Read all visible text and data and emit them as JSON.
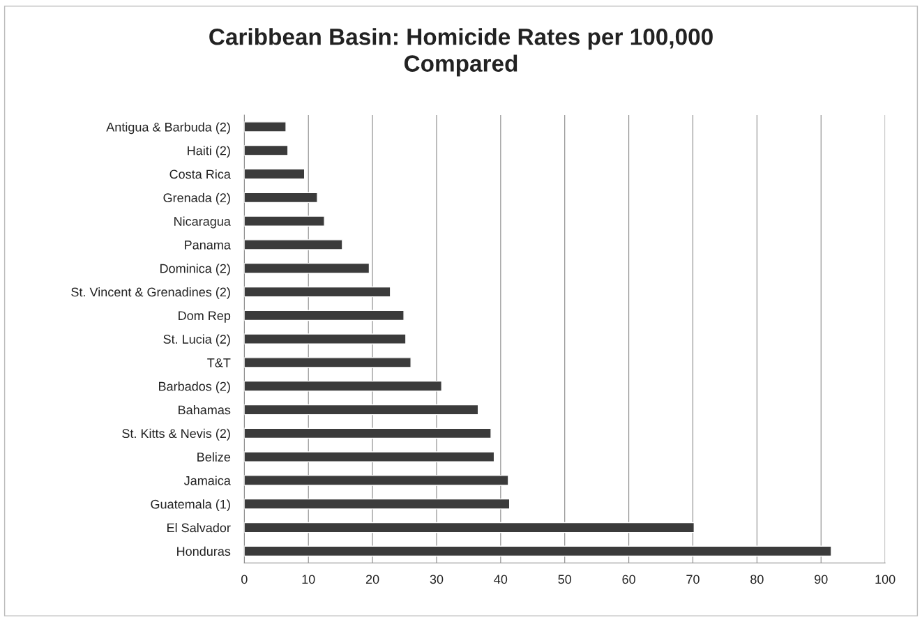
{
  "chart_data": {
    "type": "bar",
    "orientation": "horizontal",
    "title": "Caribbean Basin: Homicide Rates per 100,000\nCompared",
    "categories": [
      "Antigua & Barbuda (2)",
      "Haiti (2)",
      "Costa Rica",
      "Grenada (2)",
      "Nicaragua",
      "Panama",
      "Dominica (2)",
      "St. Vincent & Grenadines (2)",
      "Dom Rep",
      "St. Lucia (2)",
      "T&T",
      "Barbados (2)",
      "Bahamas",
      "St. Kitts & Nevis (2)",
      "Belize",
      "Jamaica",
      "Guatemala (1)",
      "El Salvador",
      "Honduras"
    ],
    "values": [
      6.5,
      6.8,
      9.4,
      11.4,
      12.5,
      15.3,
      19.5,
      22.8,
      24.9,
      25.2,
      26.0,
      30.8,
      36.5,
      38.5,
      39.0,
      41.2,
      41.4,
      70.2,
      91.6
    ],
    "color": "#3b3b3b",
    "xlim": [
      0,
      100
    ],
    "xticks": [
      0,
      10,
      20,
      30,
      40,
      50,
      60,
      70,
      80,
      90,
      100
    ],
    "grid": "x"
  }
}
